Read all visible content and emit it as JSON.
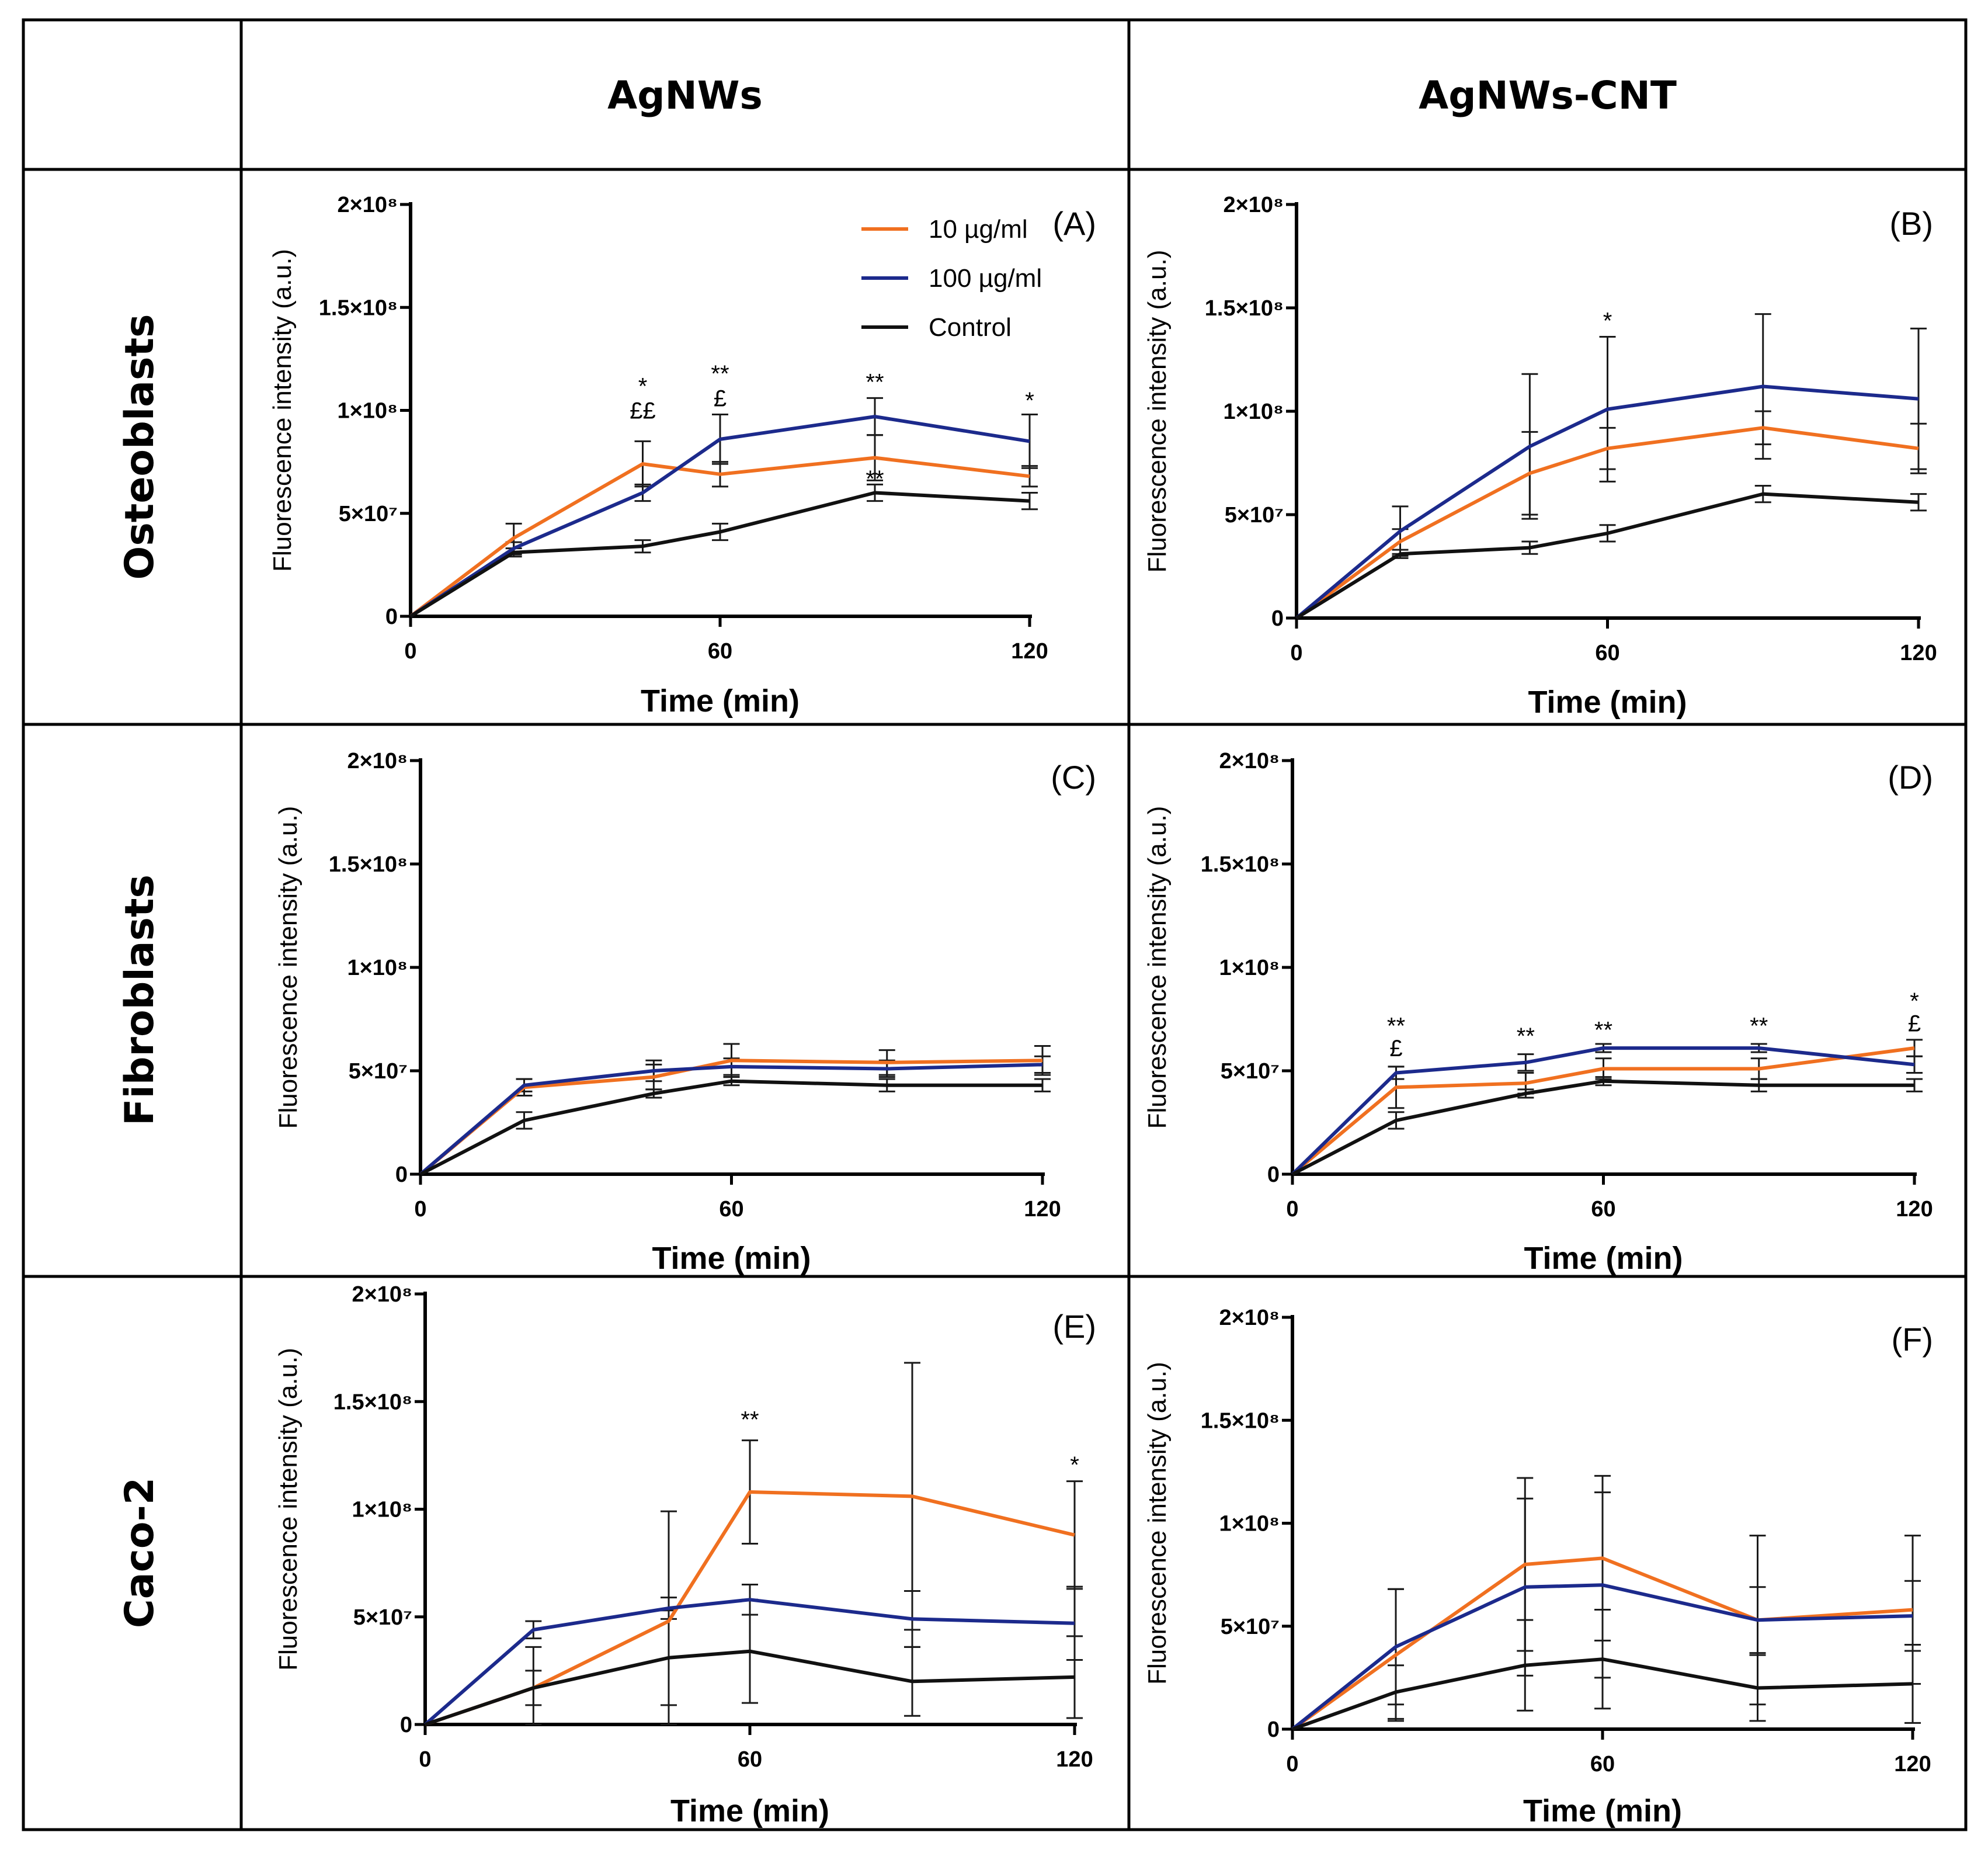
{
  "table": {
    "column_headers": [
      "AgNWs",
      "AgNWs-CNT"
    ],
    "row_labels": [
      "Osteoblasts",
      "Fibroblasts",
      "Caco-2"
    ]
  },
  "legend": {
    "entries": [
      {
        "label": "10 µg/ml",
        "color": "#f07020"
      },
      {
        "label": "100 µg/ml",
        "color": "#1c2a8c"
      },
      {
        "label": "Control",
        "color": "#111111"
      }
    ]
  },
  "chart_data": [
    {
      "panel": "(A)",
      "type": "line",
      "xlabel": "Time (min)",
      "ylabel": "Fluorescence intensity (a.u.)",
      "xlim": [
        0,
        120
      ],
      "xticks": [
        0,
        60,
        120
      ],
      "ylim": [
        0,
        200000000
      ],
      "yticks": [
        "0",
        "5×10⁷",
        "1×10⁸",
        "1.5×10⁸",
        "2×10⁸"
      ],
      "x": [
        0,
        20,
        45,
        60,
        90,
        120
      ],
      "series": [
        {
          "name": "10 µg/ml",
          "values": [
            0,
            38000000,
            74000000,
            69000000,
            77000000,
            68000000
          ],
          "errors": [
            0,
            7000000,
            11000000,
            6000000,
            11000000,
            5000000
          ]
        },
        {
          "name": "100 µg/ml",
          "values": [
            0,
            33000000,
            60000000,
            86000000,
            97000000,
            85000000
          ],
          "errors": [
            0,
            3000000,
            4000000,
            12000000,
            9000000,
            13000000
          ]
        },
        {
          "name": "Control",
          "values": [
            0,
            31000000,
            34000000,
            41000000,
            60000000,
            56000000
          ],
          "errors": [
            0,
            2000000,
            3000000,
            4000000,
            4000000,
            4000000
          ]
        }
      ],
      "annotations": [
        {
          "x": 45,
          "y": 108000000,
          "text": "*"
        },
        {
          "x": 45,
          "y": 96000000,
          "text": "££"
        },
        {
          "x": 60,
          "y": 114000000,
          "text": "**"
        },
        {
          "x": 60,
          "y": 102000000,
          "text": "£"
        },
        {
          "x": 90,
          "y": 110000000,
          "text": "**"
        },
        {
          "x": 90,
          "y": 63000000,
          "text": "**"
        },
        {
          "x": 120,
          "y": 101000000,
          "text": "*"
        }
      ]
    },
    {
      "panel": "(B)",
      "type": "line",
      "xlabel": "Time (min)",
      "ylabel": "Fluorescence intensity (a.u.)",
      "xlim": [
        0,
        120
      ],
      "xticks": [
        0,
        60,
        120
      ],
      "ylim": [
        0,
        200000000
      ],
      "yticks": [
        "0",
        "5×10⁷",
        "1×10⁸",
        "1.5×10⁸",
        "2×10⁸"
      ],
      "x": [
        0,
        20,
        45,
        60,
        90,
        120
      ],
      "series": [
        {
          "name": "10 µg/ml",
          "values": [
            0,
            37000000,
            70000000,
            82000000,
            92000000,
            82000000
          ],
          "errors": [
            0,
            6000000,
            20000000,
            10000000,
            8000000,
            12000000
          ]
        },
        {
          "name": "100 µg/ml",
          "values": [
            0,
            42000000,
            83000000,
            101000000,
            112000000,
            106000000
          ],
          "errors": [
            0,
            12000000,
            35000000,
            35000000,
            35000000,
            34000000
          ]
        },
        {
          "name": "Control",
          "values": [
            0,
            31000000,
            34000000,
            41000000,
            60000000,
            56000000
          ],
          "errors": [
            0,
            2000000,
            3000000,
            4000000,
            4000000,
            4000000
          ]
        }
      ],
      "annotations": [
        {
          "x": 60,
          "y": 140000000,
          "text": "*"
        }
      ]
    },
    {
      "panel": "(C)",
      "type": "line",
      "xlabel": "Time (min)",
      "ylabel": "Fluorescence intensity (a.u.)",
      "xlim": [
        0,
        120
      ],
      "xticks": [
        0,
        60,
        120
      ],
      "ylim": [
        0,
        200000000
      ],
      "yticks": [
        "0",
        "5×10⁷",
        "1×10⁸",
        "1.5×10⁸",
        "2×10⁸"
      ],
      "x": [
        0,
        20,
        45,
        60,
        90,
        120
      ],
      "series": [
        {
          "name": "10 µg/ml",
          "values": [
            0,
            42000000,
            47000000,
            55000000,
            54000000,
            55000000
          ],
          "errors": [
            0,
            4000000,
            6000000,
            8000000,
            6000000,
            7000000
          ]
        },
        {
          "name": "100 µg/ml",
          "values": [
            0,
            43000000,
            50000000,
            52000000,
            51000000,
            53000000
          ],
          "errors": [
            0,
            3000000,
            5000000,
            4000000,
            4000000,
            4000000
          ]
        },
        {
          "name": "Control",
          "values": [
            0,
            26000000,
            39000000,
            45000000,
            43000000,
            43000000
          ],
          "errors": [
            0,
            4000000,
            2000000,
            2000000,
            3000000,
            3000000
          ]
        }
      ],
      "annotations": []
    },
    {
      "panel": "(D)",
      "type": "line",
      "xlabel": "Time (min)",
      "ylabel": "Fluorescence intensity (a.u.)",
      "xlim": [
        0,
        120
      ],
      "xticks": [
        0,
        60,
        120
      ],
      "ylim": [
        0,
        200000000
      ],
      "yticks": [
        "0",
        "5×10⁷",
        "1×10⁸",
        "1.5×10⁸",
        "2×10⁸"
      ],
      "x": [
        0,
        20,
        45,
        60,
        90,
        120
      ],
      "series": [
        {
          "name": "10 µg/ml",
          "values": [
            0,
            42000000,
            44000000,
            51000000,
            51000000,
            61000000
          ],
          "errors": [
            0,
            10000000,
            5000000,
            5000000,
            5000000,
            4000000
          ]
        },
        {
          "name": "100 µg/ml",
          "values": [
            0,
            49000000,
            54000000,
            61000000,
            61000000,
            53000000
          ],
          "errors": [
            0,
            3000000,
            4000000,
            2000000,
            2000000,
            4000000
          ]
        },
        {
          "name": "Control",
          "values": [
            0,
            26000000,
            39000000,
            45000000,
            43000000,
            43000000
          ],
          "errors": [
            0,
            4000000,
            2000000,
            2000000,
            3000000,
            3000000
          ]
        }
      ],
      "annotations": [
        {
          "x": 20,
          "y": 68000000,
          "text": "**"
        },
        {
          "x": 20,
          "y": 57000000,
          "text": "£"
        },
        {
          "x": 45,
          "y": 63000000,
          "text": "**"
        },
        {
          "x": 60,
          "y": 66000000,
          "text": "**"
        },
        {
          "x": 90,
          "y": 68000000,
          "text": "**"
        },
        {
          "x": 120,
          "y": 80000000,
          "text": "*"
        },
        {
          "x": 120,
          "y": 69000000,
          "text": "£"
        }
      ]
    },
    {
      "panel": "(E)",
      "type": "line",
      "xlabel": "Time (min)",
      "ylabel": "Fluorescence intensity (a.u.)",
      "xlim": [
        0,
        120
      ],
      "xticks": [
        0,
        60,
        120
      ],
      "ylim": [
        0,
        200000000
      ],
      "yticks": [
        "0",
        "5×10⁷",
        "1×10⁸",
        "1.5×10⁸",
        "2×10⁸"
      ],
      "x": [
        0,
        20,
        45,
        60,
        90,
        120
      ],
      "series": [
        {
          "name": "10 µg/ml",
          "values": [
            0,
            17000000,
            48000000,
            108000000,
            106000000,
            88000000
          ],
          "errors": [
            0,
            19000000,
            51000000,
            24000000,
            62000000,
            25000000
          ]
        },
        {
          "name": "100 µg/ml",
          "values": [
            0,
            44000000,
            54000000,
            58000000,
            49000000,
            47000000
          ],
          "errors": [
            0,
            4000000,
            5000000,
            7000000,
            13000000,
            17000000
          ]
        },
        {
          "name": "Control",
          "values": [
            0,
            17000000,
            31000000,
            34000000,
            20000000,
            22000000
          ],
          "errors": [
            0,
            8000000,
            22000000,
            24000000,
            16000000,
            19000000
          ]
        }
      ],
      "annotations": [
        {
          "x": 60,
          "y": 138000000,
          "text": "**"
        },
        {
          "x": 120,
          "y": 117000000,
          "text": "*"
        }
      ]
    },
    {
      "panel": "(F)",
      "type": "line",
      "xlabel": "Time (min)",
      "ylabel": "Fluorescence intensity (a.u.)",
      "xlim": [
        0,
        120
      ],
      "xticks": [
        0,
        60,
        120
      ],
      "ylim": [
        0,
        200000000
      ],
      "yticks": [
        "0",
        "5×10⁷",
        "1×10⁸",
        "1.5×10⁸",
        "2×10⁸"
      ],
      "x": [
        0,
        20,
        45,
        60,
        90,
        120
      ],
      "series": [
        {
          "name": "10 µg/ml",
          "values": [
            0,
            36000000,
            80000000,
            83000000,
            53000000,
            58000000
          ],
          "errors": [
            0,
            32000000,
            42000000,
            40000000,
            41000000,
            36000000
          ]
        },
        {
          "name": "100 µg/ml",
          "values": [
            0,
            40000000,
            69000000,
            70000000,
            53000000,
            55000000
          ],
          "errors": [
            0,
            28000000,
            43000000,
            45000000,
            16000000,
            17000000
          ]
        },
        {
          "name": "Control",
          "values": [
            0,
            18000000,
            31000000,
            34000000,
            20000000,
            22000000
          ],
          "errors": [
            0,
            13000000,
            22000000,
            24000000,
            16000000,
            19000000
          ]
        }
      ],
      "annotations": []
    }
  ]
}
